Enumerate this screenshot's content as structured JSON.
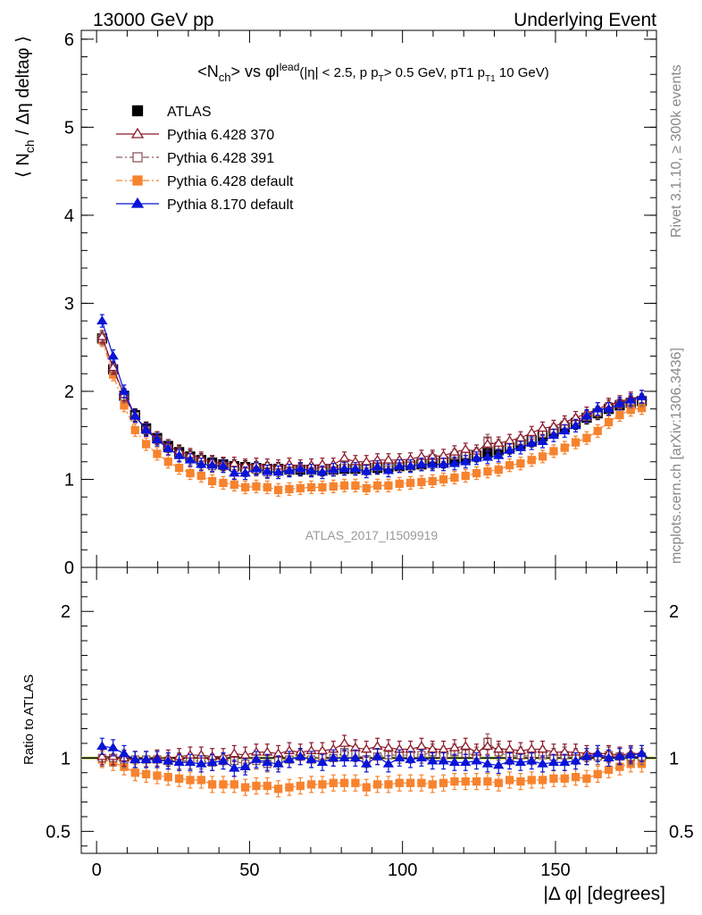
{
  "header": {
    "top_left": "13000 GeV pp",
    "top_right": "Underlying Event"
  },
  "side_labels": {
    "rivet": "Rivet 3.1.10, ≥ 300k events",
    "mcplots": "mcplots.cern.ch [arXiv:1306.3436]"
  },
  "chart_data": [
    {
      "type": "scatter",
      "panel": "main",
      "title": "<Nch> vs φlead (|η| < 2.5, pT > 0.5 GeV, pT1 > 10 GeV)",
      "watermark": "ATLAS_2017_I1509919",
      "ylabel": "⟨ Nch / Δη deltaφ ⟩",
      "xlim": [
        -5,
        183
      ],
      "ylim": [
        0,
        6.1
      ],
      "y_ticks": [
        0,
        1,
        2,
        3,
        4,
        5,
        6
      ],
      "legend_position": "top-left",
      "x": [
        1.8,
        5.4,
        9.0,
        12.6,
        16.2,
        19.8,
        23.4,
        27.0,
        30.6,
        34.2,
        37.8,
        41.4,
        45.0,
        48.6,
        52.2,
        55.8,
        59.4,
        63.0,
        66.6,
        70.2,
        73.8,
        77.4,
        81.0,
        84.6,
        88.2,
        91.8,
        95.4,
        99.0,
        102.6,
        106.2,
        109.8,
        113.4,
        117.0,
        120.6,
        124.2,
        127.8,
        131.4,
        135.0,
        138.6,
        142.2,
        145.8,
        149.4,
        153.0,
        156.6,
        160.2,
        163.8,
        167.4,
        171.0,
        174.6,
        178.2
      ],
      "series": [
        {
          "name": "ATLAS",
          "color": "#000000",
          "marker": "square-filled",
          "line": "none",
          "values": [
            2.6,
            2.25,
            1.95,
            1.73,
            1.58,
            1.47,
            1.38,
            1.31,
            1.26,
            1.22,
            1.19,
            1.17,
            1.15,
            1.14,
            1.13,
            1.12,
            1.12,
            1.11,
            1.11,
            1.11,
            1.11,
            1.11,
            1.12,
            1.12,
            1.13,
            1.13,
            1.14,
            1.15,
            1.16,
            1.17,
            1.19,
            1.2,
            1.22,
            1.24,
            1.27,
            1.3,
            1.33,
            1.36,
            1.4,
            1.44,
            1.49,
            1.54,
            1.59,
            1.64,
            1.7,
            1.75,
            1.8,
            1.84,
            1.87,
            1.89
          ]
        },
        {
          "name": "Pythia 6.428 370",
          "color": "#8b1a2b",
          "marker": "triangle-open",
          "line": "solid",
          "values": [
            2.62,
            2.27,
            1.96,
            1.72,
            1.57,
            1.47,
            1.38,
            1.32,
            1.28,
            1.24,
            1.2,
            1.18,
            1.18,
            1.16,
            1.17,
            1.16,
            1.15,
            1.17,
            1.15,
            1.16,
            1.17,
            1.17,
            1.24,
            1.2,
            1.2,
            1.22,
            1.22,
            1.22,
            1.23,
            1.26,
            1.26,
            1.27,
            1.31,
            1.34,
            1.32,
            1.4,
            1.41,
            1.44,
            1.47,
            1.53,
            1.58,
            1.6,
            1.65,
            1.7,
            1.75,
            1.8,
            1.85,
            1.88,
            1.92,
            1.94
          ]
        },
        {
          "name": "Pythia 6.428 391",
          "color": "#8b5a5a",
          "marker": "square-open",
          "line": "dash-dot",
          "values": [
            2.6,
            2.26,
            1.94,
            1.72,
            1.56,
            1.45,
            1.35,
            1.28,
            1.24,
            1.2,
            1.15,
            1.15,
            1.13,
            1.1,
            1.11,
            1.08,
            1.1,
            1.1,
            1.12,
            1.1,
            1.12,
            1.11,
            1.16,
            1.15,
            1.12,
            1.14,
            1.16,
            1.17,
            1.18,
            1.19,
            1.24,
            1.22,
            1.27,
            1.28,
            1.29,
            1.44,
            1.38,
            1.37,
            1.43,
            1.46,
            1.52,
            1.56,
            1.62,
            1.66,
            1.71,
            1.76,
            1.83,
            1.86,
            1.88,
            1.9
          ]
        },
        {
          "name": "Pythia 6.428 default",
          "color": "#f7832e",
          "marker": "square-filled",
          "line": "dash-dot",
          "values": [
            2.58,
            2.19,
            1.84,
            1.56,
            1.4,
            1.29,
            1.2,
            1.13,
            1.07,
            1.04,
            0.98,
            0.96,
            0.94,
            0.91,
            0.92,
            0.91,
            0.88,
            0.89,
            0.9,
            0.91,
            0.91,
            0.92,
            0.93,
            0.93,
            0.9,
            0.93,
            0.93,
            0.95,
            0.96,
            0.97,
            0.98,
            1.0,
            1.02,
            1.04,
            1.07,
            1.09,
            1.11,
            1.16,
            1.18,
            1.22,
            1.26,
            1.32,
            1.36,
            1.42,
            1.47,
            1.55,
            1.65,
            1.73,
            1.79,
            1.81
          ]
        },
        {
          "name": "Pythia 8.170 default",
          "color": "#0a14d8",
          "marker": "triangle-filled",
          "line": "solid",
          "values": [
            2.8,
            2.4,
            2.0,
            1.72,
            1.56,
            1.45,
            1.35,
            1.27,
            1.22,
            1.17,
            1.16,
            1.15,
            1.07,
            1.07,
            1.12,
            1.09,
            1.08,
            1.1,
            1.12,
            1.1,
            1.08,
            1.11,
            1.12,
            1.12,
            1.09,
            1.14,
            1.1,
            1.15,
            1.15,
            1.17,
            1.17,
            1.17,
            1.18,
            1.2,
            1.24,
            1.25,
            1.27,
            1.33,
            1.36,
            1.41,
            1.43,
            1.5,
            1.55,
            1.61,
            1.72,
            1.8,
            1.8,
            1.86,
            1.9,
            1.94
          ]
        }
      ]
    },
    {
      "type": "scatter",
      "panel": "ratio",
      "xlabel": "|Δ φ| [degrees]",
      "ylabel": "Ratio to ATLAS",
      "xlim": [
        -5,
        183
      ],
      "ylim": [
        0.35,
        2.3
      ],
      "x_ticks": [
        0,
        50,
        100,
        150
      ],
      "y_ticks": [
        0.5,
        1,
        2
      ],
      "x": [
        1.8,
        5.4,
        9.0,
        12.6,
        16.2,
        19.8,
        23.4,
        27.0,
        30.6,
        34.2,
        37.8,
        41.4,
        45.0,
        48.6,
        52.2,
        55.8,
        59.4,
        63.0,
        66.6,
        70.2,
        73.8,
        77.4,
        81.0,
        84.6,
        88.2,
        91.8,
        95.4,
        99.0,
        102.6,
        106.2,
        109.8,
        113.4,
        117.0,
        120.6,
        124.2,
        127.8,
        131.4,
        135.0,
        138.6,
        142.2,
        145.8,
        149.4,
        153.0,
        156.6,
        160.2,
        163.8,
        167.4,
        171.0,
        174.6,
        178.2
      ],
      "series": [
        {
          "name": "Pythia 6.428 370",
          "color": "#8b1a2b",
          "marker": "triangle-open",
          "line": "solid",
          "values": [
            1.01,
            1.01,
            1.0,
            0.99,
            0.99,
            1.0,
            1.0,
            1.01,
            1.02,
            1.02,
            1.01,
            1.01,
            1.03,
            1.02,
            1.04,
            1.04,
            1.03,
            1.05,
            1.04,
            1.05,
            1.05,
            1.06,
            1.1,
            1.07,
            1.06,
            1.08,
            1.07,
            1.06,
            1.06,
            1.08,
            1.06,
            1.06,
            1.07,
            1.08,
            1.04,
            1.08,
            1.06,
            1.06,
            1.05,
            1.06,
            1.06,
            1.04,
            1.04,
            1.04,
            1.03,
            1.03,
            1.03,
            1.02,
            1.03,
            1.03
          ]
        },
        {
          "name": "Pythia 6.428 391",
          "color": "#8b5a5a",
          "marker": "square-open",
          "line": "dash-dot",
          "values": [
            1.0,
            1.0,
            0.99,
            0.99,
            0.99,
            0.99,
            0.98,
            0.98,
            0.98,
            0.98,
            0.97,
            0.98,
            0.98,
            0.96,
            0.98,
            0.96,
            0.98,
            0.99,
            1.01,
            0.99,
            1.01,
            1.0,
            1.04,
            1.03,
            0.99,
            1.01,
            1.02,
            1.02,
            1.02,
            1.02,
            1.04,
            1.02,
            1.04,
            1.03,
            1.02,
            1.11,
            1.04,
            1.01,
            1.02,
            1.01,
            1.02,
            1.01,
            1.02,
            1.01,
            1.01,
            1.01,
            1.02,
            1.01,
            1.01,
            1.01
          ]
        },
        {
          "name": "Pythia 6.428 default",
          "color": "#f7832e",
          "marker": "square-filled",
          "line": "dash-dot",
          "values": [
            0.99,
            0.97,
            0.94,
            0.9,
            0.89,
            0.88,
            0.87,
            0.86,
            0.85,
            0.85,
            0.82,
            0.82,
            0.82,
            0.8,
            0.81,
            0.81,
            0.79,
            0.8,
            0.81,
            0.82,
            0.82,
            0.83,
            0.83,
            0.83,
            0.8,
            0.82,
            0.82,
            0.83,
            0.83,
            0.83,
            0.82,
            0.83,
            0.84,
            0.84,
            0.84,
            0.84,
            0.83,
            0.85,
            0.84,
            0.85,
            0.85,
            0.86,
            0.86,
            0.87,
            0.86,
            0.89,
            0.92,
            0.94,
            0.96,
            0.96
          ]
        },
        {
          "name": "Pythia 8.170 default",
          "color": "#0a14d8",
          "marker": "triangle-filled",
          "line": "solid",
          "values": [
            1.08,
            1.07,
            1.03,
            0.99,
            0.99,
            0.99,
            0.98,
            0.97,
            0.97,
            0.96,
            0.97,
            0.98,
            0.93,
            0.94,
            0.99,
            0.97,
            0.96,
            0.99,
            1.01,
            0.99,
            0.97,
            1.0,
            1.0,
            1.0,
            0.96,
            1.01,
            0.96,
            1.0,
            0.99,
            1.0,
            0.98,
            0.98,
            0.97,
            0.97,
            0.98,
            0.96,
            0.95,
            0.98,
            0.97,
            0.98,
            0.96,
            0.97,
            0.97,
            0.98,
            1.01,
            1.03,
            1.0,
            1.01,
            1.02,
            1.03
          ]
        }
      ]
    }
  ]
}
